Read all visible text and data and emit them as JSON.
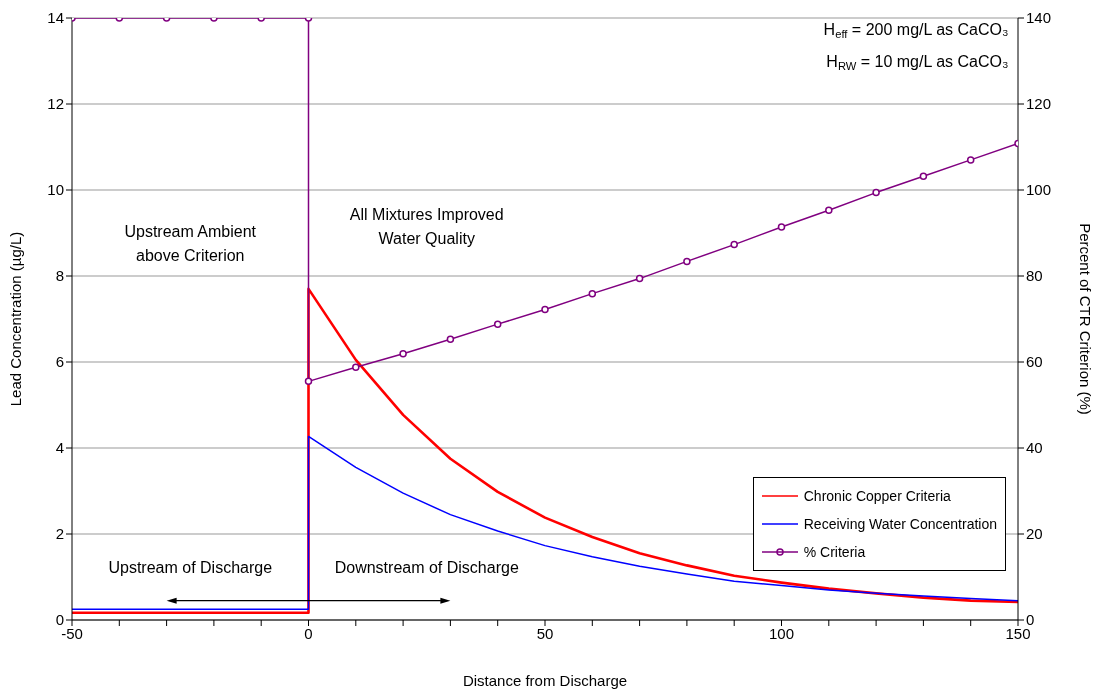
{
  "chart_data": {
    "type": "line",
    "xlabel": "Distance from Discharge",
    "ylabel": "Lead Concentration (µg/L)",
    "y2label": "Percent of CTR Criterion (%)",
    "xlim": [
      -50,
      150
    ],
    "xticks": [
      -50,
      {
        "value": -40,
        "label": null
      },
      {
        "value": -30,
        "label": null
      },
      {
        "value": -20,
        "label": null
      },
      {
        "value": -10,
        "label": null
      },
      0,
      {
        "value": 10,
        "label": null
      },
      {
        "value": 20,
        "label": null
      },
      {
        "value": 30,
        "label": null
      },
      {
        "value": 40,
        "label": null
      },
      50,
      {
        "value": 60,
        "label": null
      },
      {
        "value": 70,
        "label": null
      },
      {
        "value": 80,
        "label": null
      },
      {
        "value": 90,
        "label": null
      },
      100,
      {
        "value": 110,
        "label": null
      },
      {
        "value": 120,
        "label": null
      },
      {
        "value": 130,
        "label": null
      },
      {
        "value": 140,
        "label": null
      },
      150
    ],
    "ylim": [
      0,
      14
    ],
    "yticks": [
      0,
      2,
      4,
      6,
      8,
      10,
      12,
      14
    ],
    "y2lim": [
      0,
      140
    ],
    "y2ticks": [
      0,
      20,
      40,
      60,
      80,
      100,
      120,
      140
    ],
    "grid": "y",
    "legend": "bottom right",
    "line_style": "solid",
    "series": [
      {
        "name": "Chronic Copper Criteria",
        "color": "#ff0000",
        "x": [
          -50,
          0,
          0,
          10,
          20,
          30,
          40,
          50,
          60,
          70,
          80,
          90,
          100,
          110,
          120,
          130,
          140,
          150
        ],
        "values": [
          0.17,
          0.17,
          7.7,
          6.05,
          4.77,
          3.75,
          2.98,
          2.38,
          1.93,
          1.55,
          1.27,
          1.03,
          0.87,
          0.73,
          0.62,
          0.52,
          0.45,
          0.42
        ]
      },
      {
        "name": "Receiving Water Concentration",
        "color": "#0000ff",
        "x": [
          -50,
          0,
          0,
          10,
          20,
          30,
          40,
          50,
          60,
          70,
          80,
          90,
          100,
          110,
          120,
          130,
          140,
          150
        ],
        "values": [
          0.25,
          0.25,
          4.27,
          3.55,
          2.95,
          2.45,
          2.07,
          1.73,
          1.47,
          1.25,
          1.07,
          0.9,
          0.8,
          0.7,
          0.62,
          0.56,
          0.5,
          0.45
        ]
      },
      {
        "name": "% Criteria",
        "color": "#800080",
        "axis": "y2",
        "marker": "circle",
        "x": [
          -50,
          -40,
          -30,
          -20,
          -10,
          0,
          0,
          10,
          20,
          30,
          40,
          50,
          60,
          70,
          80,
          90,
          100,
          110,
          120,
          130,
          140,
          150
        ],
        "values": [
          140,
          140,
          140,
          140,
          140,
          140,
          55.5,
          58.8,
          61.9,
          65.3,
          68.8,
          72.2,
          75.9,
          79.4,
          83.4,
          87.3,
          91.4,
          95.3,
          99.4,
          103.2,
          107,
          110.8
        ]
      }
    ],
    "annotations": [
      "H$_{eff}$ = 200 mg/L as CaCO₃",
      "H$_{RW}$ = 10 mg/L as CaCO₃",
      "Upstream Ambient\nabove Criterion",
      "All Mixtures Improved\nWater Quality",
      "Upstream of Discharge",
      "Downstream of Discharge"
    ]
  }
}
